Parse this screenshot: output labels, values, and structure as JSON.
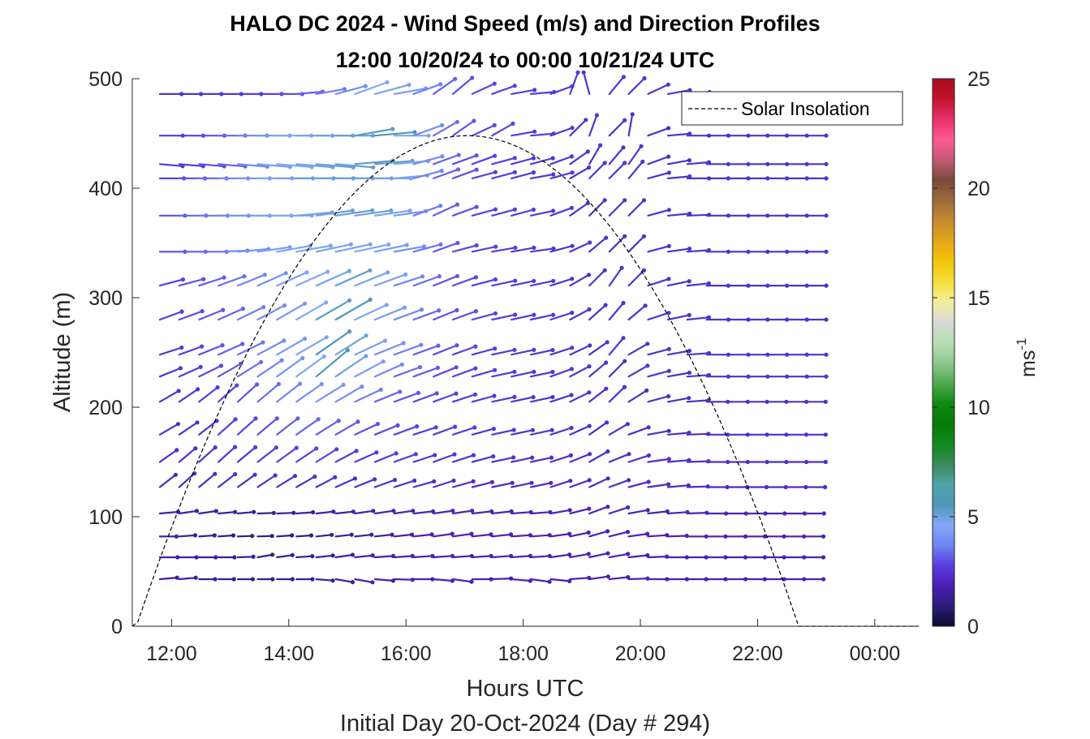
{
  "chart_data": {
    "type": "quiver",
    "title": "HALO DC 2024 - Wind Speed (m/s) and Direction Profiles",
    "subtitle": "12:00 10/20/24 to 00:00 10/21/24  UTC",
    "xlabel": "Hours UTC",
    "xlabel2": "Initial Day 20-Oct-2024 (Day # 294)",
    "ylabel": "Altitude (m)",
    "xlim": [
      11.33,
      24.75
    ],
    "ylim": [
      0,
      500
    ],
    "x_ticks": [
      12,
      14,
      16,
      18,
      20,
      22,
      24
    ],
    "x_tick_labels": [
      "12:00",
      "14:00",
      "16:00",
      "18:00",
      "20:00",
      "22:00",
      "00:00"
    ],
    "y_ticks": [
      0,
      100,
      200,
      300,
      400,
      500
    ],
    "y_tick_labels": [
      "0",
      "100",
      "200",
      "300",
      "400",
      "500"
    ],
    "legend": [
      {
        "label": "Solar Insolation",
        "style": "dashed",
        "color": "#000000"
      }
    ],
    "legend_location": "top-right",
    "colorbar": {
      "label": "ms",
      "label_exponent": "-1",
      "range": [
        0,
        25
      ],
      "ticks": [
        0,
        5,
        10,
        15,
        20,
        25
      ],
      "colors": [
        "#0b0a2e",
        "#2b1d7a",
        "#4a1fb0",
        "#5a3de0",
        "#6f86f2",
        "#82a8f5",
        "#4e98b8",
        "#4ea3a8",
        "#3a8a5a",
        "#128a1f",
        "#067a06",
        "#0f8a0f",
        "#4faa4f",
        "#8fc98f",
        "#b8ddb3",
        "#d9d9d9",
        "#f2ef9a",
        "#f4dd3a",
        "#f2c40a",
        "#e3a61a",
        "#c58a32",
        "#9c6a3c",
        "#7a4a3a",
        "#c25a74",
        "#ff5a95",
        "#e8306a",
        "#c3142e",
        "#a50c1c"
      ]
    },
    "solar_insolation": {
      "start_hour": 11.33,
      "peak_hour": 17.05,
      "end_hour": 22.7,
      "peak_altitude": 448,
      "end_x": 24.75
    },
    "hours": [
      11.8,
      12.13,
      12.47,
      12.8,
      13.13,
      13.47,
      13.8,
      14.13,
      14.47,
      14.8,
      15.13,
      15.47,
      15.8,
      16.13,
      16.47,
      16.8,
      17.13,
      17.47,
      17.8,
      18.13,
      18.47,
      18.8,
      19.13,
      19.47,
      19.8,
      20.13,
      20.47,
      20.8,
      21.13,
      21.47,
      21.8,
      22.13,
      22.47,
      22.8
    ],
    "altitudes": [
      486,
      448,
      422,
      409,
      375,
      342,
      311,
      280,
      248,
      228,
      205,
      175,
      150,
      127,
      103,
      82,
      63,
      43
    ],
    "wind_direction_deg": [
      [
        270,
        270,
        270,
        270,
        270,
        270,
        270,
        265,
        260,
        255,
        250,
        255,
        260,
        250,
        235,
        230,
        245,
        250,
        260,
        265,
        250,
        200,
        165,
        220,
        225,
        245,
        260,
        265,
        270,
        270,
        270,
        270,
        270,
        270
      ],
      [
        270,
        270,
        270,
        270,
        270,
        270,
        270,
        270,
        270,
        270,
        260,
        265,
        270,
        250,
        240,
        235,
        245,
        240,
        260,
        265,
        250,
        225,
        200,
        225,
        190,
        250,
        265,
        270,
        270,
        270,
        270,
        270,
        270,
        270
      ],
      [
        275,
        275,
        275,
        275,
        275,
        275,
        275,
        275,
        275,
        275,
        265,
        265,
        265,
        255,
        250,
        250,
        250,
        255,
        255,
        255,
        250,
        235,
        210,
        220,
        215,
        250,
        260,
        265,
        270,
        270,
        270,
        270,
        270,
        270
      ],
      [
        270,
        270,
        270,
        270,
        270,
        270,
        270,
        270,
        270,
        270,
        270,
        270,
        265,
        255,
        250,
        250,
        255,
        255,
        255,
        260,
        255,
        240,
        225,
        225,
        220,
        255,
        265,
        270,
        270,
        270,
        270,
        270,
        270,
        270
      ],
      [
        270,
        270,
        270,
        270,
        270,
        270,
        270,
        265,
        262,
        262,
        262,
        262,
        262,
        250,
        245,
        250,
        255,
        255,
        255,
        258,
        250,
        235,
        225,
        225,
        225,
        255,
        265,
        268,
        270,
        270,
        270,
        270,
        270,
        270
      ],
      [
        270,
        270,
        270,
        268,
        265,
        262,
        260,
        260,
        258,
        258,
        258,
        258,
        260,
        255,
        250,
        255,
        258,
        260,
        260,
        262,
        255,
        245,
        230,
        225,
        225,
        255,
        262,
        266,
        270,
        270,
        270,
        270,
        270,
        270
      ],
      [
        255,
        255,
        252,
        250,
        248,
        246,
        246,
        246,
        246,
        246,
        248,
        250,
        252,
        250,
        248,
        250,
        255,
        258,
        258,
        258,
        252,
        240,
        225,
        215,
        225,
        252,
        258,
        264,
        270,
        270,
        270,
        270,
        270,
        270
      ],
      [
        250,
        250,
        248,
        246,
        244,
        242,
        240,
        240,
        240,
        240,
        245,
        248,
        250,
        250,
        248,
        250,
        255,
        258,
        258,
        258,
        252,
        242,
        228,
        220,
        230,
        252,
        258,
        264,
        270,
        270,
        270,
        270,
        270,
        270
      ],
      [
        252,
        250,
        248,
        246,
        244,
        242,
        240,
        240,
        235,
        238,
        245,
        248,
        250,
        250,
        248,
        250,
        255,
        258,
        258,
        258,
        252,
        245,
        235,
        220,
        240,
        255,
        260,
        266,
        270,
        270,
        270,
        270,
        270,
        270
      ],
      [
        248,
        246,
        244,
        240,
        238,
        236,
        234,
        234,
        230,
        236,
        242,
        246,
        250,
        250,
        248,
        250,
        254,
        258,
        258,
        258,
        250,
        242,
        230,
        225,
        240,
        255,
        260,
        266,
        270,
        270,
        270,
        270,
        270,
        270
      ],
      [
        240,
        236,
        232,
        228,
        228,
        230,
        232,
        235,
        238,
        240,
        245,
        248,
        250,
        250,
        250,
        252,
        255,
        258,
        258,
        258,
        252,
        244,
        232,
        226,
        238,
        255,
        260,
        266,
        270,
        270,
        270,
        270,
        270,
        270
      ],
      [
        240,
        236,
        232,
        228,
        228,
        230,
        232,
        235,
        238,
        240,
        245,
        248,
        250,
        252,
        250,
        252,
        255,
        258,
        258,
        258,
        252,
        246,
        235,
        240,
        250,
        260,
        265,
        268,
        270,
        270,
        270,
        270,
        270,
        270
      ],
      [
        235,
        230,
        228,
        228,
        230,
        232,
        234,
        236,
        238,
        242,
        246,
        248,
        250,
        252,
        250,
        252,
        255,
        258,
        258,
        258,
        252,
        248,
        240,
        248,
        252,
        262,
        265,
        268,
        270,
        270,
        270,
        270,
        270,
        270
      ],
      [
        232,
        228,
        230,
        232,
        234,
        236,
        238,
        240,
        242,
        246,
        248,
        250,
        252,
        254,
        252,
        254,
        256,
        258,
        258,
        258,
        252,
        250,
        245,
        250,
        255,
        262,
        265,
        268,
        270,
        270,
        270,
        270,
        270,
        270
      ],
      [
        265,
        262,
        262,
        265,
        265,
        268,
        268,
        266,
        264,
        264,
        262,
        262,
        262,
        264,
        262,
        262,
        264,
        264,
        266,
        266,
        260,
        256,
        250,
        252,
        260,
        264,
        266,
        268,
        270,
        270,
        270,
        270,
        270,
        270
      ],
      [
        270,
        266,
        266,
        266,
        268,
        268,
        266,
        266,
        264,
        264,
        264,
        264,
        264,
        264,
        262,
        262,
        264,
        264,
        266,
        266,
        262,
        258,
        254,
        256,
        262,
        266,
        268,
        270,
        270,
        270,
        270,
        270,
        270,
        270
      ],
      [
        270,
        270,
        270,
        270,
        268,
        260,
        262,
        266,
        264,
        262,
        264,
        266,
        266,
        266,
        266,
        266,
        266,
        266,
        266,
        266,
        262,
        260,
        258,
        260,
        264,
        268,
        270,
        270,
        270,
        270,
        270,
        270,
        270,
        270
      ],
      [
        265,
        265,
        270,
        270,
        270,
        270,
        270,
        270,
        275,
        280,
        280,
        275,
        272,
        270,
        275,
        278,
        270,
        268,
        275,
        278,
        276,
        266,
        262,
        264,
        268,
        270,
        270,
        270,
        270,
        270,
        270,
        270,
        270,
        270
      ]
    ],
    "wind_speed_ms": [
      [
        2.4,
        2.4,
        2.5,
        2.6,
        2.7,
        2.8,
        3.0,
        3.2,
        3.6,
        4.0,
        4.6,
        4.8,
        4.2,
        3.6,
        3.2,
        3.0,
        2.9,
        2.8,
        2.7,
        2.7,
        2.6,
        2.6,
        2.5,
        2.5,
        2.5,
        2.5,
        2.5,
        2.5,
        2.5,
        2.5,
        2.5,
        2.5,
        2.5,
        2.5
      ],
      [
        2.6,
        2.8,
        3.0,
        3.3,
        3.7,
        4.2,
        4.6,
        4.9,
        5.0,
        5.1,
        5.3,
        5.6,
        4.6,
        3.9,
        3.4,
        3.1,
        2.9,
        2.8,
        2.7,
        2.6,
        2.6,
        2.5,
        2.4,
        2.4,
        2.4,
        2.4,
        2.4,
        2.4,
        2.4,
        2.4,
        2.4,
        2.4,
        2.4,
        2.4
      ],
      [
        2.6,
        2.8,
        3.0,
        3.3,
        3.8,
        4.3,
        4.7,
        5.0,
        5.1,
        5.2,
        5.3,
        5.2,
        4.6,
        3.8,
        3.3,
        3.0,
        2.8,
        2.7,
        2.6,
        2.6,
        2.5,
        2.4,
        2.4,
        2.4,
        2.4,
        2.4,
        2.4,
        2.4,
        2.4,
        2.4,
        2.4,
        2.4,
        2.4,
        2.4
      ],
      [
        2.8,
        3.1,
        3.4,
        3.8,
        4.2,
        4.6,
        4.9,
        5.1,
        5.1,
        5.1,
        5.0,
        4.9,
        4.4,
        3.7,
        3.2,
        3.0,
        2.8,
        2.7,
        2.6,
        2.6,
        2.5,
        2.4,
        2.4,
        2.4,
        2.4,
        2.4,
        2.4,
        2.4,
        2.4,
        2.4,
        2.4,
        2.4,
        2.4,
        2.4
      ],
      [
        3.0,
        3.3,
        3.6,
        3.9,
        4.2,
        4.5,
        4.7,
        4.9,
        5.0,
        5.1,
        5.0,
        4.8,
        4.2,
        3.6,
        3.2,
        3.0,
        2.8,
        2.7,
        2.6,
        2.6,
        2.5,
        2.4,
        2.4,
        2.4,
        2.4,
        2.4,
        2.4,
        2.4,
        2.4,
        2.4,
        2.4,
        2.4,
        2.4,
        2.4
      ],
      [
        3.0,
        3.2,
        3.4,
        3.7,
        4.0,
        4.3,
        4.5,
        4.7,
        4.8,
        4.8,
        4.6,
        4.3,
        3.9,
        3.5,
        3.1,
        2.9,
        2.8,
        2.7,
        2.6,
        2.6,
        2.5,
        2.4,
        2.4,
        2.4,
        2.4,
        2.4,
        2.4,
        2.4,
        2.4,
        2.4,
        2.4,
        2.4,
        2.4,
        2.4
      ],
      [
        2.8,
        3.0,
        3.2,
        3.4,
        3.7,
        4.0,
        4.3,
        4.6,
        4.9,
        5.2,
        4.8,
        4.3,
        3.8,
        3.4,
        3.1,
        2.9,
        2.8,
        2.7,
        2.6,
        2.6,
        2.5,
        2.4,
        2.4,
        2.4,
        2.4,
        2.4,
        2.4,
        2.4,
        2.4,
        2.4,
        2.4,
        2.4,
        2.4,
        2.4
      ],
      [
        2.7,
        2.9,
        3.1,
        3.3,
        3.6,
        3.9,
        4.2,
        4.6,
        5.3,
        5.6,
        4.7,
        4.2,
        3.7,
        3.3,
        3.0,
        2.9,
        2.8,
        2.7,
        2.6,
        2.6,
        2.5,
        2.4,
        2.4,
        2.4,
        2.4,
        2.4,
        2.4,
        2.4,
        2.4,
        2.4,
        2.4,
        2.4,
        2.4,
        2.4
      ],
      [
        2.6,
        2.8,
        3.0,
        3.2,
        3.5,
        3.8,
        4.2,
        4.7,
        5.7,
        4.9,
        4.4,
        4.0,
        3.6,
        3.2,
        3.0,
        2.8,
        2.7,
        2.6,
        2.6,
        2.5,
        2.5,
        2.4,
        2.4,
        2.4,
        2.4,
        2.4,
        2.4,
        2.4,
        2.4,
        2.4,
        2.4,
        2.4,
        2.4,
        2.4
      ],
      [
        2.5,
        2.7,
        2.9,
        3.1,
        3.4,
        3.7,
        4.1,
        4.6,
        5.8,
        5.0,
        4.2,
        3.8,
        3.4,
        3.1,
        2.9,
        2.8,
        2.7,
        2.6,
        2.6,
        2.5,
        2.5,
        2.4,
        2.4,
        2.4,
        2.4,
        2.4,
        2.4,
        2.4,
        2.4,
        2.4,
        2.4,
        2.4,
        2.4,
        2.4
      ],
      [
        2.4,
        2.5,
        2.7,
        2.9,
        3.1,
        3.4,
        3.7,
        4.0,
        4.2,
        3.9,
        3.6,
        3.3,
        3.1,
        2.9,
        2.8,
        2.7,
        2.6,
        2.6,
        2.5,
        2.5,
        2.4,
        2.3,
        2.3,
        2.3,
        2.3,
        2.3,
        2.3,
        2.3,
        2.3,
        2.3,
        2.3,
        2.3,
        2.3,
        2.3
      ],
      [
        2.3,
        2.4,
        2.5,
        2.6,
        2.8,
        3.0,
        3.2,
        3.3,
        3.2,
        3.1,
        3.0,
        2.9,
        2.8,
        2.7,
        2.6,
        2.6,
        2.5,
        2.5,
        2.4,
        2.4,
        2.4,
        2.3,
        2.3,
        2.3,
        2.3,
        2.3,
        2.3,
        2.3,
        2.3,
        2.3,
        2.3,
        2.3,
        2.3,
        2.3
      ],
      [
        2.2,
        2.3,
        2.4,
        2.5,
        2.6,
        2.7,
        2.8,
        2.8,
        2.8,
        2.7,
        2.7,
        2.6,
        2.6,
        2.5,
        2.5,
        2.4,
        2.4,
        2.4,
        2.3,
        2.3,
        2.3,
        2.3,
        2.3,
        2.3,
        2.3,
        2.3,
        2.3,
        2.3,
        2.3,
        2.3,
        2.3,
        2.3,
        2.3,
        2.3
      ],
      [
        2.1,
        2.2,
        2.2,
        2.3,
        2.3,
        2.3,
        2.3,
        2.3,
        2.3,
        2.3,
        2.3,
        2.3,
        2.3,
        2.3,
        2.3,
        2.3,
        2.2,
        2.2,
        2.2,
        2.2,
        2.2,
        2.2,
        2.2,
        2.2,
        2.2,
        2.2,
        2.2,
        2.2,
        2.2,
        2.2,
        2.2,
        2.2,
        2.2,
        2.2
      ],
      [
        1.8,
        1.7,
        1.6,
        1.5,
        1.4,
        1.4,
        1.5,
        1.5,
        1.6,
        1.7,
        1.8,
        1.9,
        1.9,
        2.0,
        2.0,
        2.0,
        2.0,
        2.0,
        2.0,
        2.0,
        2.0,
        2.0,
        2.0,
        2.0,
        2.0,
        2.0,
        2.0,
        2.0,
        2.0,
        2.0,
        2.0,
        2.0,
        2.0,
        2.0
      ],
      [
        1.5,
        1.4,
        1.3,
        1.2,
        1.1,
        1.1,
        1.2,
        1.2,
        1.3,
        1.4,
        1.5,
        1.6,
        1.7,
        1.8,
        1.9,
        1.9,
        1.9,
        1.9,
        1.9,
        1.9,
        1.9,
        1.9,
        1.9,
        1.9,
        1.9,
        1.9,
        1.9,
        1.9,
        1.9,
        1.9,
        1.9,
        1.9,
        1.9,
        1.9
      ],
      [
        1.7,
        1.6,
        1.5,
        1.4,
        1.3,
        1.2,
        1.3,
        1.4,
        1.5,
        1.6,
        1.7,
        1.8,
        1.8,
        1.9,
        1.9,
        1.9,
        1.9,
        1.9,
        1.9,
        1.9,
        1.9,
        1.9,
        1.9,
        1.9,
        1.9,
        1.9,
        1.9,
        1.9,
        1.9,
        1.9,
        1.9,
        1.9,
        1.9,
        1.9
      ],
      [
        1.6,
        1.5,
        1.4,
        1.3,
        1.2,
        1.2,
        1.3,
        1.4,
        1.5,
        1.6,
        1.7,
        1.8,
        1.8,
        1.9,
        1.9,
        1.9,
        1.9,
        1.9,
        1.9,
        1.9,
        1.9,
        1.9,
        1.9,
        1.9,
        1.9,
        1.9,
        1.9,
        1.9,
        1.9,
        1.9,
        1.9,
        1.9,
        1.9,
        1.9
      ]
    ]
  }
}
